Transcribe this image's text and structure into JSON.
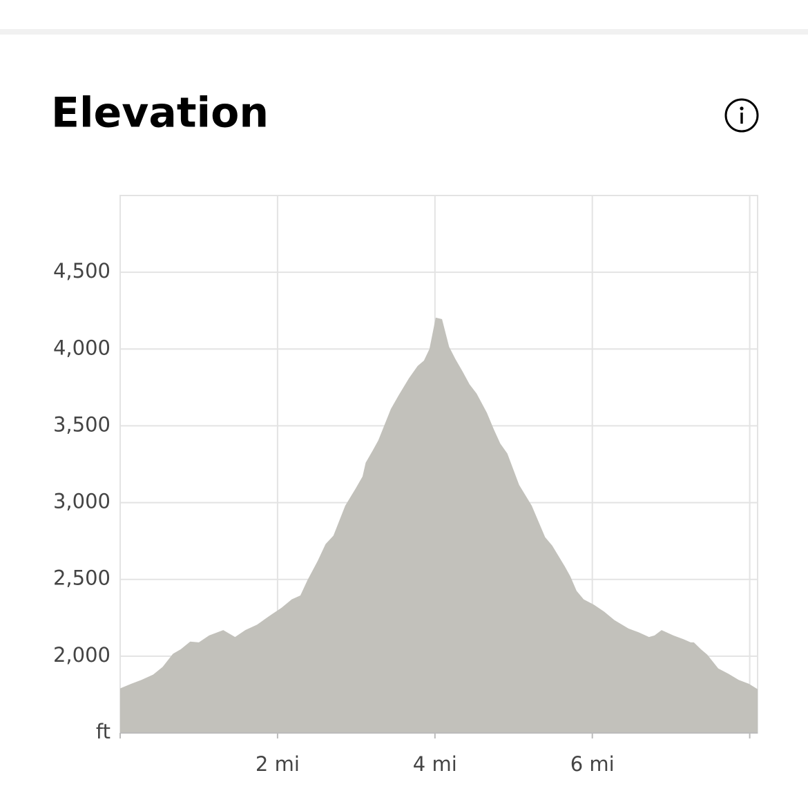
{
  "chart_data": {
    "type": "area",
    "title": "Elevation",
    "x": [
      0,
      0.14,
      0.27,
      0.42,
      0.54,
      0.67,
      0.77,
      0.89,
      1.0,
      1.13,
      1.31,
      1.46,
      1.59,
      1.74,
      1.89,
      2.05,
      2.18,
      2.29,
      2.38,
      2.51,
      2.61,
      2.71,
      2.86,
      2.99,
      3.08,
      3.12,
      3.21,
      3.28,
      3.44,
      3.54,
      3.67,
      3.78,
      3.86,
      3.93,
      4.01,
      4.09,
      4.18,
      4.26,
      4.35,
      4.44,
      4.53,
      4.66,
      4.75,
      4.83,
      4.92,
      5.07,
      5.23,
      5.4,
      5.49,
      5.65,
      5.72,
      5.8,
      5.89,
      6.02,
      6.15,
      6.28,
      6.46,
      6.59,
      6.72,
      6.79,
      6.88,
      7.03,
      7.16,
      7.25,
      7.29,
      7.38,
      7.46,
      7.6,
      7.73,
      7.86,
      7.99,
      8.1
    ],
    "values": [
      1790,
      1820,
      1845,
      1880,
      1930,
      2015,
      2045,
      2095,
      2090,
      2135,
      2170,
      2125,
      2170,
      2205,
      2260,
      2315,
      2370,
      2395,
      2495,
      2620,
      2730,
      2785,
      2980,
      3090,
      3170,
      3260,
      3340,
      3405,
      3610,
      3700,
      3810,
      3890,
      3925,
      4000,
      4205,
      4195,
      4015,
      3935,
      3855,
      3770,
      3710,
      3585,
      3475,
      3385,
      3320,
      3115,
      2980,
      2775,
      2720,
      2585,
      2520,
      2425,
      2370,
      2335,
      2290,
      2235,
      2180,
      2155,
      2125,
      2135,
      2170,
      2135,
      2110,
      2090,
      2090,
      2045,
      2010,
      1920,
      1885,
      1845,
      1820,
      1785
    ],
    "color": "#c2c1bb",
    "xlim": [
      0,
      8.1
    ],
    "xticks": [
      {
        "value": 0,
        "label": null
      },
      {
        "value": 2,
        "label": "2 mi"
      },
      {
        "value": 4,
        "label": "4 mi"
      },
      {
        "value": 6,
        "label": "6 mi"
      },
      {
        "value": 8,
        "label": null
      }
    ],
    "ylim": [
      1500,
      5000
    ],
    "yticks": [
      {
        "value": 1500,
        "label": "ft"
      },
      {
        "value": 2000,
        "label": "2,000"
      },
      {
        "value": 2500,
        "label": "2,500"
      },
      {
        "value": 3000,
        "label": "3,000"
      },
      {
        "value": 3500,
        "label": "3,500"
      },
      {
        "value": 4000,
        "label": "4,000"
      },
      {
        "value": 4500,
        "label": "4,500"
      }
    ],
    "grid": true
  }
}
